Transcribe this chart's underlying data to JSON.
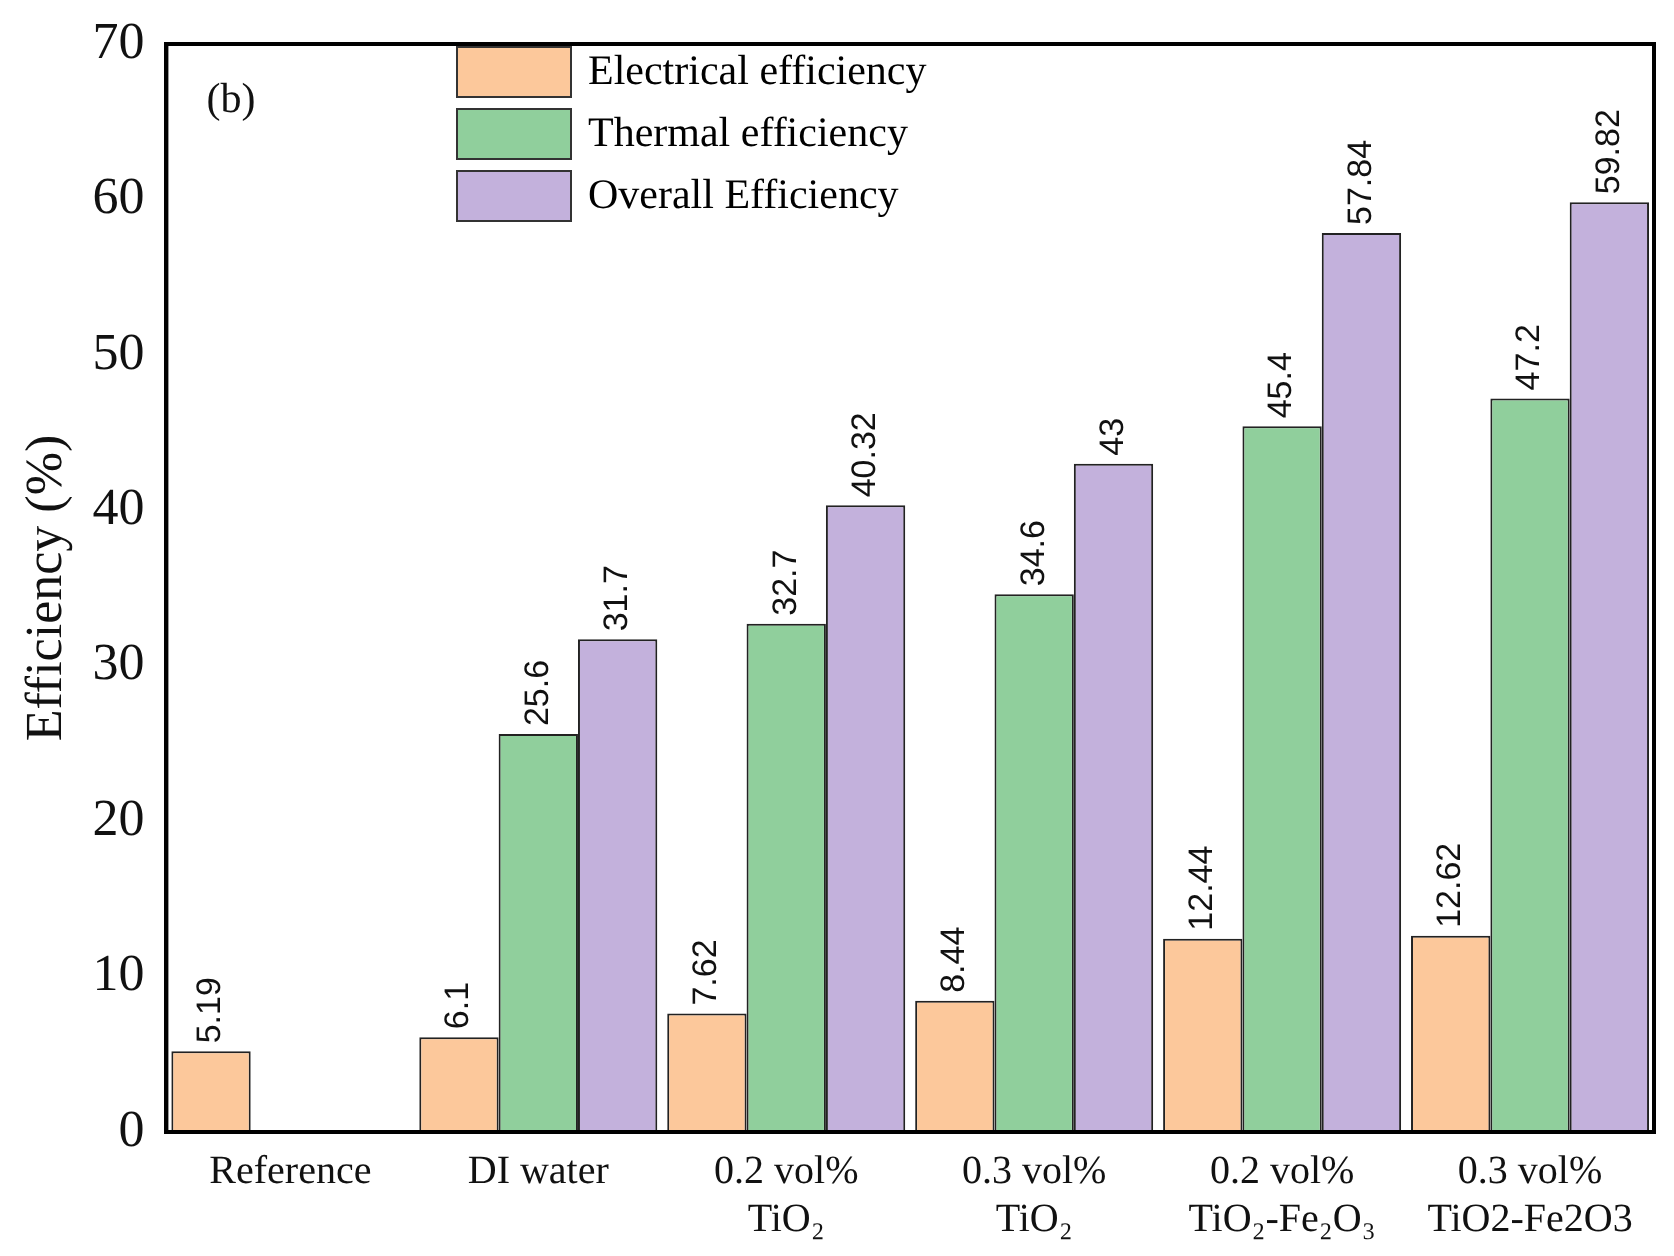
{
  "chart_data": {
    "type": "bar",
    "categories": [
      "Reference",
      "DI water",
      "0.2 vol%\nTiO₂",
      "0.3 vol%\nTiO₂",
      "0.2 vol%\nTiO₂-Fe₂O₃",
      "0.3 vol%\nTiO2-Fe2O3"
    ],
    "series": [
      {
        "name": "Electrical efficiency",
        "color": "#fcc89b",
        "values": [
          5.19,
          6.1,
          7.62,
          8.44,
          12.44,
          12.62
        ]
      },
      {
        "name": "Thermal efficiency",
        "color": "#90cf9c",
        "values": [
          null,
          25.6,
          32.7,
          34.6,
          45.4,
          47.2
        ]
      },
      {
        "name": "Overall Efficiency",
        "color": "#c3b1dc",
        "values": [
          null,
          31.7,
          40.32,
          43,
          57.84,
          59.82
        ]
      }
    ],
    "ylabel": "Efficiency (%)",
    "ylim": [
      0,
      70
    ],
    "yticks": [
      0,
      10,
      20,
      30,
      40,
      50,
      60,
      70
    ],
    "annotations": [
      "(b)"
    ],
    "data_labels": true,
    "grid": false,
    "legend": "top"
  }
}
